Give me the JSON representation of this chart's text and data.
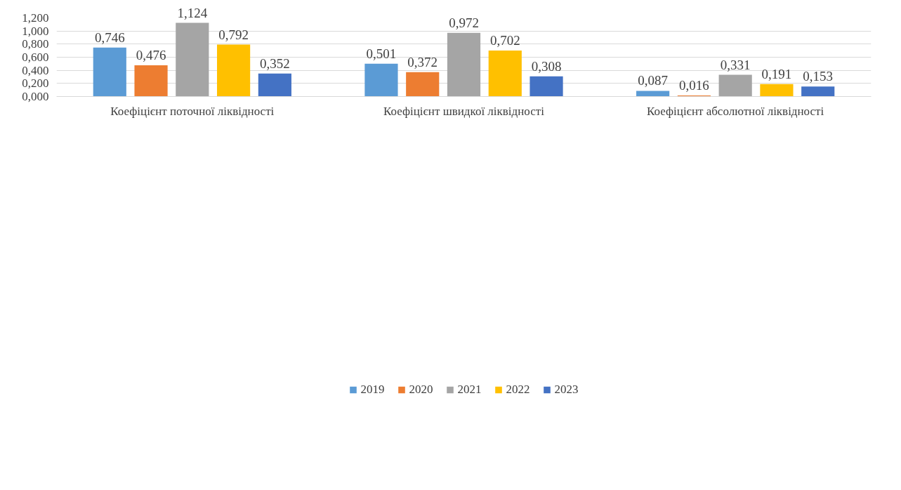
{
  "chart_data": {
    "type": "bar",
    "categories": [
      "Коефіцієнт поточної ліквідності",
      "Коефіцієнт швидкої ліквідності",
      "Коефіцієнт абсолютної ліквідності"
    ],
    "series": [
      {
        "name": "2019",
        "color": "#5b9bd5",
        "values": [
          0.746,
          0.501,
          0.087
        ],
        "value_labels": [
          "0,746",
          "0,501",
          "0,087"
        ]
      },
      {
        "name": "2020",
        "color": "#ed7d31",
        "values": [
          0.476,
          0.372,
          0.016
        ],
        "value_labels": [
          "0,476",
          "0,372",
          "0,016"
        ]
      },
      {
        "name": "2021",
        "color": "#a5a5a5",
        "values": [
          1.124,
          0.972,
          0.331
        ],
        "value_labels": [
          "1,124",
          "0,972",
          "0,331"
        ]
      },
      {
        "name": "2022",
        "color": "#ffc000",
        "values": [
          0.792,
          0.702,
          0.191
        ],
        "value_labels": [
          "0,792",
          "0,702",
          "0,191"
        ]
      },
      {
        "name": "2023",
        "color": "#4472c4",
        "values": [
          0.352,
          0.308,
          0.153
        ],
        "value_labels": [
          "0,352",
          "0,308",
          "0,153"
        ]
      }
    ],
    "ylim": [
      0,
      1.2
    ],
    "yticks": [
      {
        "value": 0,
        "label": "0,000"
      },
      {
        "value": 0.2,
        "label": "0,200"
      },
      {
        "value": 0.4,
        "label": "0,400"
      },
      {
        "value": 0.6,
        "label": "0,600"
      },
      {
        "value": 0.8,
        "label": "0,800"
      },
      {
        "value": 1.0,
        "label": "1,000"
      },
      {
        "value": 1.2,
        "label": "1,200"
      }
    ],
    "grid": "y",
    "legend": "bottom"
  }
}
